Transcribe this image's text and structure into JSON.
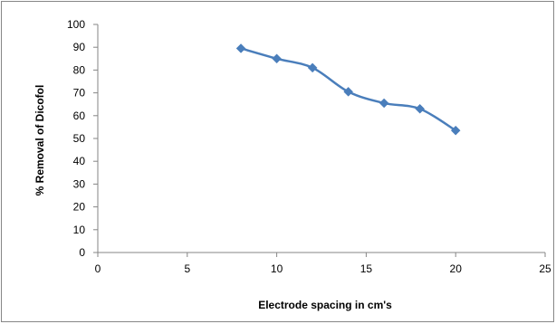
{
  "chart_data": {
    "type": "scatter",
    "title": "",
    "xlabel": "Electrode spacing in cm's",
    "ylabel": "% Removal of Dicofol",
    "xlim": [
      0,
      25
    ],
    "ylim": [
      0,
      100
    ],
    "xticks": [
      0,
      5,
      10,
      15,
      20,
      25
    ],
    "yticks": [
      0,
      10,
      20,
      30,
      40,
      50,
      60,
      70,
      80,
      90,
      100
    ],
    "grid": false,
    "legend": "none",
    "line_style": "smooth line with diamond markers",
    "color": "#4a7ebb",
    "series": [
      {
        "x": [
          8,
          10,
          12,
          14,
          16,
          18,
          20
        ],
        "y": [
          89.5,
          85,
          81,
          70.5,
          65.5,
          63,
          53.5
        ]
      }
    ]
  }
}
